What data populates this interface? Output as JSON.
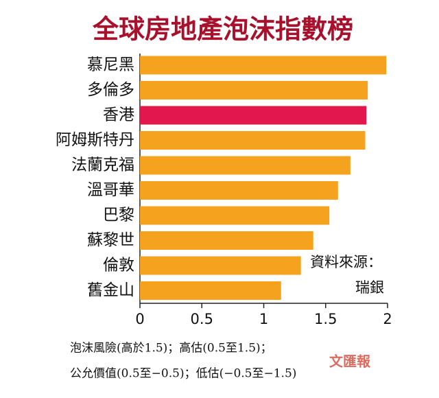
{
  "chart_data": {
    "type": "barh",
    "title": "全球房地產泡沫指數榜",
    "categories": [
      "慕尼黑",
      "多倫多",
      "香港",
      "阿姆斯特丹",
      "法蘭克福",
      "溫哥華",
      "巴黎",
      "蘇黎世",
      "倫敦",
      "舊金山"
    ],
    "values": [
      1.99,
      1.84,
      1.83,
      1.82,
      1.7,
      1.6,
      1.53,
      1.4,
      1.3,
      1.14
    ],
    "colors": [
      "#f5a21f",
      "#f5a21f",
      "#e2174e",
      "#f5a21f",
      "#f5a21f",
      "#f5a21f",
      "#f5a21f",
      "#f5a21f",
      "#f5a21f",
      "#f5a21f"
    ],
    "xlim": [
      0,
      2
    ],
    "xticks": [
      0,
      0.5,
      1,
      1.5,
      2
    ],
    "source_label": "資料來源：",
    "source": "瑞銀",
    "notes": [
      "泡沫風險(高於1.5)；高估(0.5至1.5)；",
      "公允價值(0.5至−0.5)；低估(−0.5至−1.5)"
    ],
    "watermark": "文匯報"
  }
}
